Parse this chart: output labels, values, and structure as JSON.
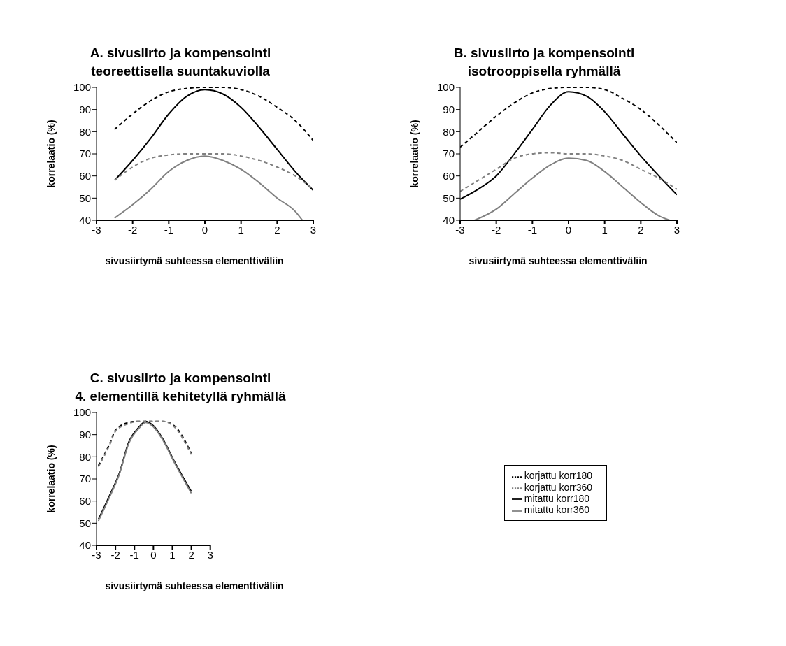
{
  "chart_data": [
    {
      "type": "line",
      "title": "A. sivusiirto ja kompensointi\nteoreettisella suuntakuviolla",
      "xlabel": "sivusiirtymä suhteessa elementtiväliin",
      "ylabel": "korrelaatio (%)",
      "xlim": [
        -3,
        3
      ],
      "xticks": [
        -3,
        -2,
        -1,
        0,
        1,
        2,
        3
      ],
      "ylim": [
        40,
        100
      ],
      "yticks": [
        40,
        50,
        60,
        70,
        80,
        90,
        100
      ],
      "grid": false,
      "legend": false,
      "series": [
        {
          "color": "#000000",
          "line_style": "solid",
          "x": [
            -2.5,
            -2,
            -1.5,
            -1,
            -0.5,
            0,
            0.5,
            1,
            1.5,
            2,
            2.5,
            3
          ],
          "values": [
            58,
            67,
            77,
            88,
            96,
            99,
            97,
            91,
            82,
            72,
            62,
            53.5
          ]
        },
        {
          "color": "#808080",
          "line_style": "solid",
          "x": [
            -2.5,
            -2,
            -1.5,
            -1,
            -0.5,
            0,
            0.5,
            1,
            1.5,
            2,
            2.5,
            2.7
          ],
          "values": [
            41,
            47,
            54,
            62,
            67,
            69,
            67,
            63,
            57,
            50,
            44,
            40
          ]
        },
        {
          "color": "#000000",
          "line_style": "dashed",
          "x": [
            -2.5,
            -2,
            -1.5,
            -1,
            -0.5,
            0,
            0.5,
            1,
            1.5,
            2,
            2.5,
            3
          ],
          "values": [
            81,
            88,
            94,
            98,
            99.5,
            100,
            100,
            99,
            96,
            91,
            85,
            76
          ]
        },
        {
          "color": "#808080",
          "line_style": "dashed",
          "x": [
            -2.5,
            -2,
            -1.5,
            -1,
            -0.5,
            0,
            0.5,
            1,
            1.5,
            2,
            2.5,
            3
          ],
          "values": [
            58,
            64,
            68,
            69.5,
            70,
            70,
            70,
            69,
            67,
            64,
            60,
            54
          ]
        }
      ]
    },
    {
      "type": "line",
      "title": "B. sivusiirto ja kompensointi\nisotrooppisella ryhmällä",
      "xlabel": "sivusiirtymä suhteessa elementtiväliin",
      "ylabel": "korrelaatio (%)",
      "xlim": [
        -3,
        3
      ],
      "xticks": [
        -3,
        -2,
        -1,
        0,
        1,
        2,
        3
      ],
      "ylim": [
        40,
        100
      ],
      "yticks": [
        40,
        50,
        60,
        70,
        80,
        90,
        100
      ],
      "grid": false,
      "legend": false,
      "series": [
        {
          "color": "#000000",
          "line_style": "solid",
          "x": [
            -3,
            -2.5,
            -2,
            -1.5,
            -1,
            -0.5,
            0,
            0.5,
            1,
            1.5,
            2,
            2.5,
            3
          ],
          "values": [
            49.5,
            54,
            60,
            70,
            81,
            92,
            98,
            96,
            89,
            79,
            69,
            60,
            51.5
          ]
        },
        {
          "color": "#808080",
          "line_style": "solid",
          "x": [
            -2.6,
            -2,
            -1.5,
            -1,
            -0.5,
            0,
            0.5,
            1,
            1.5,
            2,
            2.5,
            2.8
          ],
          "values": [
            40,
            45,
            52,
            59,
            65,
            68,
            67,
            62,
            55,
            48,
            42,
            40
          ]
        },
        {
          "color": "#000000",
          "line_style": "dashed",
          "x": [
            -3,
            -2.5,
            -2,
            -1.5,
            -1,
            -0.5,
            0,
            0.5,
            1,
            1.5,
            2,
            2.5,
            3
          ],
          "values": [
            73,
            80,
            87,
            93,
            97.5,
            99.5,
            100,
            100,
            99,
            95,
            90,
            83,
            75
          ]
        },
        {
          "color": "#808080",
          "line_style": "dashed",
          "x": [
            -3,
            -2.5,
            -2,
            -1.5,
            -1,
            -0.5,
            0,
            0.5,
            1,
            1.5,
            2,
            2.5,
            3
          ],
          "values": [
            53,
            58,
            63,
            68,
            70,
            70.5,
            70,
            70,
            69,
            67,
            63,
            59,
            54
          ]
        }
      ]
    },
    {
      "type": "line",
      "title": "C. sivusiirto ja kompensointi\n4. elementillä kehitetyllä ryhmällä",
      "xlabel": "sivusiirtymä suhteessa elementtiväliin",
      "ylabel": "korrelaatio (%)",
      "xlim": [
        -3,
        3
      ],
      "xticks": [
        -3,
        -2,
        -1,
        0,
        1,
        2,
        3
      ],
      "ylim": [
        40,
        100
      ],
      "yticks": [
        40,
        50,
        60,
        70,
        80,
        90,
        100
      ],
      "grid": false,
      "legend": "right",
      "series": [
        {
          "name": "mitattu korr180",
          "color": "#000000",
          "line_style": "solid",
          "x": [
            -2.9,
            -2.3,
            -1.8,
            -1.3,
            -0.8,
            -0.4,
            0,
            0.5,
            1.1,
            2
          ],
          "values": [
            51.7,
            62.7,
            72.5,
            86.6,
            93,
            96,
            94,
            88,
            78,
            64.3
          ]
        },
        {
          "name": "mitattu korr360",
          "color": "#808080",
          "line_style": "solid",
          "x": [
            -2.9,
            -2.3,
            -1.8,
            -1.3,
            -0.8,
            -0.4,
            0,
            0.5,
            1.1,
            2
          ],
          "values": [
            51,
            62,
            72,
            86,
            92.5,
            95.5,
            93.5,
            87.5,
            77.5,
            63.5
          ]
        },
        {
          "name": "korjattu korr180",
          "color": "#000000",
          "line_style": "dashed",
          "x": [
            -2.9,
            -2.3,
            -2,
            -1.3,
            -0.8,
            -0.4,
            0,
            0.5,
            1.1,
            2
          ],
          "values": [
            76,
            86,
            92,
            95.5,
            96,
            96,
            96,
            96,
            94,
            81.5
          ]
        },
        {
          "name": "korjattu korr360",
          "color": "#808080",
          "line_style": "dashed",
          "x": [
            -2.9,
            -2.3,
            -2,
            -1.3,
            -0.8,
            -0.4,
            0,
            0.5,
            1.1,
            2
          ],
          "values": [
            75.5,
            85.5,
            91.5,
            95,
            96,
            96,
            96,
            96,
            93.5,
            81
          ]
        }
      ]
    }
  ]
}
